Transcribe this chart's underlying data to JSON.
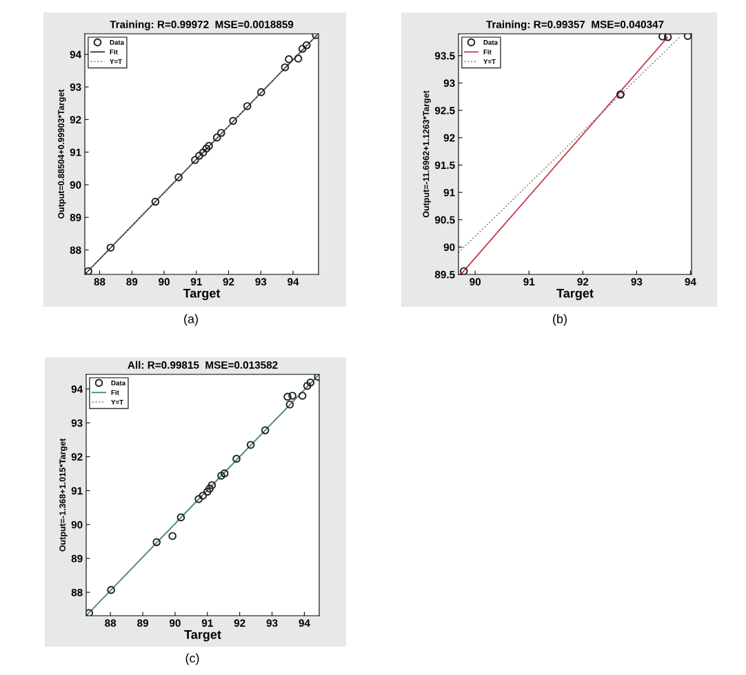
{
  "chart_data": [
    {
      "type": "scatter",
      "title": "Training: R=0.99972  MSE=0.0018859",
      "xlabel": "Target",
      "ylabel": "Output=0.88504+0.99903*Target",
      "xlim": [
        87.54,
        94.79
      ],
      "ylim": [
        87.25,
        94.63
      ],
      "xticks": [
        88,
        89,
        90,
        91,
        92,
        93,
        94
      ],
      "yticks": [
        88,
        89,
        90,
        91,
        92,
        93,
        94
      ],
      "grid": false,
      "legend": "top left",
      "annotations": [
        "(a)"
      ],
      "series": [
        {
          "name": "Data",
          "color": "#222222",
          "marker": "circle",
          "x": [
            87.65,
            88.34,
            89.73,
            90.45,
            90.96,
            91.09,
            91.21,
            91.31,
            91.39,
            91.64,
            91.77,
            92.14,
            92.58,
            93.01,
            93.75,
            93.87,
            94.16,
            94.29,
            94.42,
            94.71
          ],
          "values": [
            87.35,
            88.07,
            89.48,
            90.23,
            90.76,
            90.89,
            90.99,
            91.11,
            91.19,
            91.45,
            91.59,
            91.96,
            92.41,
            92.84,
            93.6,
            93.85,
            93.87,
            94.17,
            94.28,
            94.59
          ]
        },
        {
          "name": "Fit",
          "type": "line",
          "color": "#333333",
          "line_style": "solid",
          "x": [
            87.54,
            94.75
          ],
          "values": [
            87.25,
            94.6
          ]
        },
        {
          "name": "Y=T",
          "type": "line",
          "color": "#888888",
          "line_style": "dotted",
          "x": [
            87.54,
            94.75
          ],
          "values": [
            87.25,
            94.6
          ]
        }
      ]
    },
    {
      "type": "scatter",
      "title": "Training: R=0.99357  MSE=0.040347",
      "xlabel": "Target",
      "ylabel": "Output=-11.6962+1.1263*Target",
      "xlim": [
        89.69,
        94.02
      ],
      "ylim": [
        89.5,
        93.9
      ],
      "xticks": [
        90,
        91,
        92,
        93,
        94
      ],
      "yticks": [
        89.5,
        90,
        90.5,
        91,
        91.5,
        92,
        92.5,
        93,
        93.5
      ],
      "grid": false,
      "legend": "top left",
      "annotations": [
        "(b)"
      ],
      "series": [
        {
          "name": "Data",
          "color": "#222222",
          "marker": "circle",
          "x": [
            89.79,
            92.7,
            92.7,
            93.48,
            93.58,
            93.95
          ],
          "values": [
            89.56,
            92.79,
            92.79,
            93.85,
            93.84,
            93.86
          ]
        },
        {
          "name": "Fit",
          "type": "line",
          "color": "#c83a4a",
          "line_style": "solid",
          "x": [
            89.75,
            93.57
          ],
          "values": [
            89.52,
            93.83
          ]
        },
        {
          "name": "Y=T",
          "type": "line",
          "color": "#888888",
          "line_style": "dotted",
          "x": [
            89.69,
            93.81
          ],
          "values": [
            89.9,
            93.85
          ]
        }
      ]
    },
    {
      "type": "scatter",
      "title": "All: R=0.99815  MSE=0.013582",
      "xlabel": "Target",
      "ylabel": "Output=-1.368+1.015*Target",
      "xlim": [
        87.25,
        94.46
      ],
      "ylim": [
        87.31,
        94.43
      ],
      "xticks": [
        88,
        89,
        90,
        91,
        92,
        93,
        94
      ],
      "yticks": [
        88,
        89,
        90,
        91,
        92,
        93,
        94
      ],
      "grid": false,
      "legend": "top left",
      "annotations": [
        "(c)"
      ],
      "series": [
        {
          "name": "Data",
          "color": "#222222",
          "marker": "circle",
          "x": [
            87.34,
            88.02,
            89.43,
            89.92,
            90.18,
            90.73,
            90.86,
            91.0,
            91.07,
            91.14,
            91.43,
            91.53,
            91.9,
            92.34,
            92.79,
            93.48,
            93.63,
            93.55,
            93.94,
            94.09,
            94.19,
            94.42
          ],
          "values": [
            87.39,
            88.07,
            89.48,
            89.66,
            90.21,
            90.75,
            90.85,
            90.97,
            91.06,
            91.16,
            91.44,
            91.51,
            91.94,
            92.35,
            92.78,
            93.77,
            93.8,
            93.54,
            93.8,
            94.09,
            94.19,
            94.36
          ]
        },
        {
          "name": "Fit",
          "type": "line",
          "color": "#2e8b6e",
          "line_style": "solid",
          "x": [
            87.25,
            94.46
          ],
          "values": [
            87.31,
            94.43
          ]
        },
        {
          "name": "Y=T",
          "type": "line",
          "color": "#888888",
          "line_style": "dotted",
          "x": [
            87.25,
            94.46
          ],
          "values": [
            87.31,
            94.43
          ]
        }
      ]
    }
  ]
}
